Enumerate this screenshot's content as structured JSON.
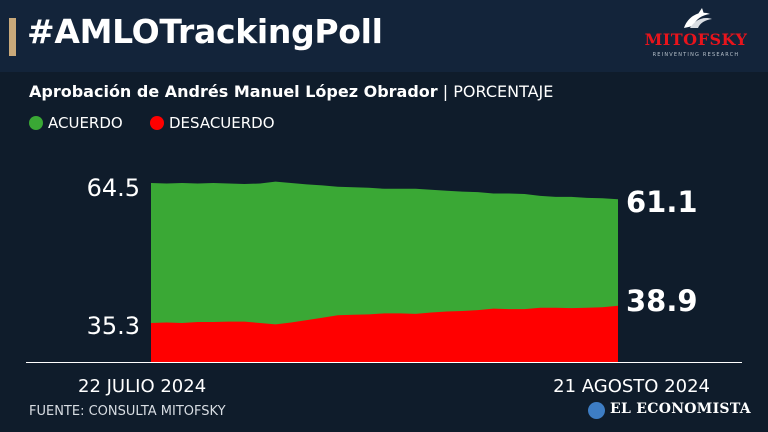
{
  "header": {
    "hashtag": "#AMLOTrackingPoll",
    "logo_name": "MITOFSKY",
    "logo_tagline": "REINVENTING RESEARCH"
  },
  "subtitle": {
    "main": "Aprobación de Andrés Manuel López Obrador",
    "separator": " | ",
    "unit": "PORCENTAJE"
  },
  "legend": [
    {
      "label": "ACUERDO",
      "color": "#3aa835"
    },
    {
      "label": "DESACUERDO",
      "color": "#ff0000"
    }
  ],
  "footer": {
    "source": "FUENTE: CONSULTA MITOFSKY",
    "brand": "EL ECONOMISTA",
    "brand_icon": "globe-icon"
  },
  "chart_data": {
    "type": "area",
    "title": "Aprobación de Andrés Manuel López Obrador",
    "ylabel": "PORCENTAJE",
    "x_start_label": "22 JULIO 2024",
    "x_end_label": "21 AGOSTO 2024",
    "ytick_labels": [
      "64.5",
      "35.3"
    ],
    "end_labels": [
      "61.1",
      "38.9"
    ],
    "series": [
      {
        "name": "ACUERDO",
        "color": "#3aa835",
        "values": [
          64.5,
          64.4,
          64.5,
          64.4,
          64.5,
          64.4,
          64.3,
          64.4,
          64.8,
          64.5,
          64.2,
          64.0,
          63.7,
          63.6,
          63.5,
          63.3,
          63.3,
          63.3,
          63.1,
          62.9,
          62.7,
          62.6,
          62.3,
          62.3,
          62.2,
          61.8,
          61.6,
          61.6,
          61.4,
          61.3,
          61.1
        ]
      },
      {
        "name": "DESACUERDO",
        "color": "#ff0000",
        "values": [
          35.3,
          35.4,
          35.3,
          35.5,
          35.5,
          35.6,
          35.6,
          35.3,
          35.0,
          35.4,
          35.9,
          36.4,
          36.9,
          37.0,
          37.1,
          37.3,
          37.3,
          37.2,
          37.5,
          37.7,
          37.8,
          38.0,
          38.3,
          38.2,
          38.2,
          38.5,
          38.5,
          38.4,
          38.5,
          38.6,
          38.9
        ]
      }
    ],
    "grid": false,
    "legend_position": "top-left"
  }
}
